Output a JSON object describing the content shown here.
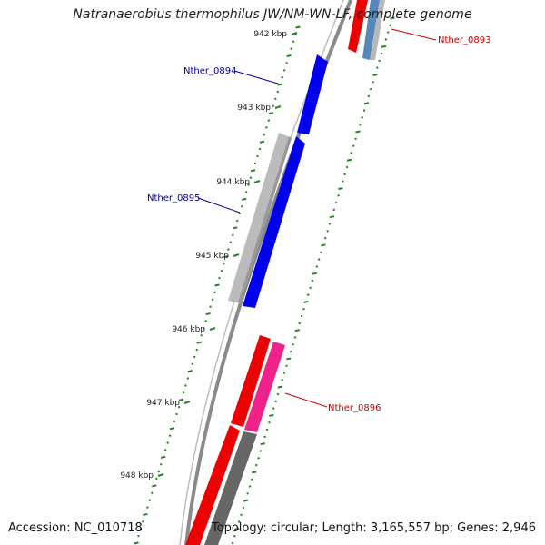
{
  "title": "Natranaerobius thermophilus JW/NM-WN-LF, complete genome",
  "accession": "Accession: NC_010718",
  "topology": "Topology: circular; Length: 3,165,557 bp; Genes: 2,946",
  "ticks": [
    {
      "label": "942 kbp"
    },
    {
      "label": "943 kbp"
    },
    {
      "label": "944 kbp"
    },
    {
      "label": "945 kbp"
    },
    {
      "label": "946 kbp"
    },
    {
      "label": "947 kbp"
    },
    {
      "label": "948 kbp"
    }
  ],
  "genes": [
    {
      "label": "Nther_0893",
      "color": "#cc0000"
    },
    {
      "label": "Nther_0894",
      "color": "#000099"
    },
    {
      "label": "Nther_0895",
      "color": "#000099"
    },
    {
      "label": "Nther_0896",
      "color": "#cc0000"
    }
  ],
  "colors": {
    "backbone": "#888888",
    "forward_cds": "#0000ee",
    "reverse_cds": "#ee0000",
    "trna": "#ee2288",
    "other": "#bbbbbb",
    "dark": "#666666",
    "tick": "#228822"
  }
}
